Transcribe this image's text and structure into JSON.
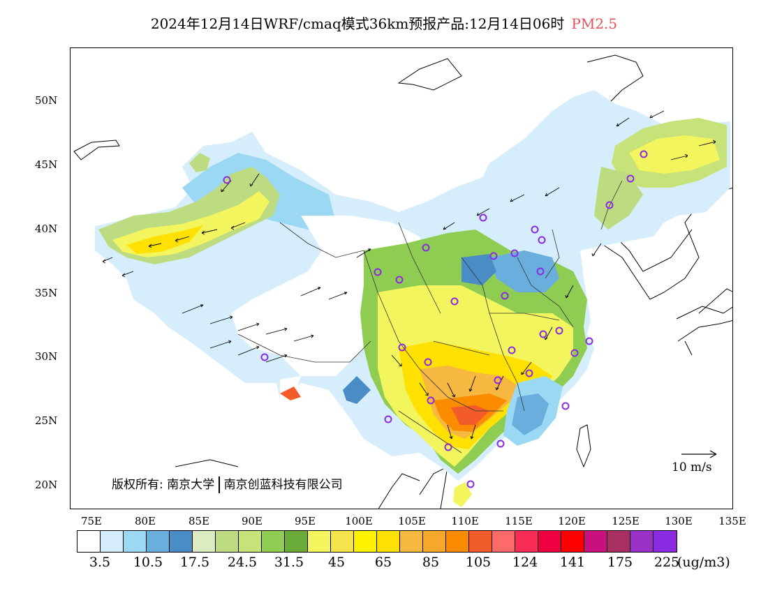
{
  "title": {
    "text": "2024年12月14日WRF/cmaq模式36km预报产品:12月14日06时",
    "variable": "PM2.5"
  },
  "map": {
    "lat_labels": [
      "50N",
      "45N",
      "40N",
      "35N",
      "30N",
      "25N",
      "20N"
    ],
    "lon_labels": [
      "75E",
      "80E",
      "85E",
      "90E",
      "95E",
      "100E",
      "105E",
      "110E",
      "115E",
      "120E",
      "125E",
      "130E",
      "135E"
    ],
    "copyright": {
      "prefix": "版权所有:",
      "org1": "南京大学",
      "org2": "南京创蓝科技有限公司"
    },
    "reference_vector": "10 m/s",
    "station_marker_color": "#8a2be2"
  },
  "colorbar": {
    "colors": [
      "#ffffff",
      "#d6eefb",
      "#9ad8f3",
      "#6aaede",
      "#4a8cc6",
      "#dcebc0",
      "#bddc82",
      "#c8e27a",
      "#8fcc52",
      "#6aab3a",
      "#f2f55e",
      "#f4e34a",
      "#fff200",
      "#fee100",
      "#f6b840",
      "#f7a72a",
      "#fb8c00",
      "#f35c2a",
      "#fe6a6a",
      "#fa2e55",
      "#ee0040",
      "#fe0000",
      "#c8107e",
      "#a83060",
      "#9a30c8",
      "#8a2be2"
    ],
    "labels": [
      "3.5",
      "10.5",
      "17.5",
      "24.5",
      "31.5",
      "45",
      "65",
      "85",
      "105",
      "124",
      "141",
      "175",
      "225"
    ],
    "units": "(ug/m3)"
  }
}
